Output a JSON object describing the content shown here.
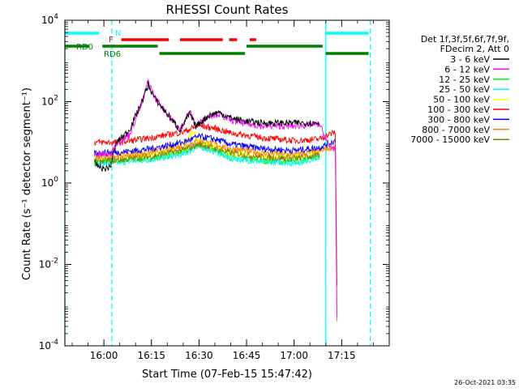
{
  "chart_data": {
    "type": "line",
    "title": "RHESSI Count Rates",
    "xlabel": "Start Time (07-Feb-15 15:47:42)",
    "ylabel": "Count Rate (s⁻¹ detector segment⁻¹)",
    "y_scale": "log",
    "ylim": [
      0.0001,
      10000
    ],
    "xlim": [
      "15:47:42",
      "17:30:00"
    ],
    "x_ticks": [
      "16:00",
      "16:15",
      "16:30",
      "16:45",
      "17:00",
      "17:15"
    ],
    "y_ticks": [
      {
        "value": 0.0001,
        "base": "10",
        "exp": "-4"
      },
      {
        "value": 0.01,
        "base": "10",
        "exp": "-2"
      },
      {
        "value": 1,
        "base": "10",
        "exp": "0"
      },
      {
        "value": 100,
        "base": "10",
        "exp": "2"
      },
      {
        "value": 10000,
        "base": "10",
        "exp": "4"
      }
    ],
    "legend": {
      "placement": "right",
      "header": [
        "Det 1f,3f,5f,6f,7f,9f,",
        "FDecim 2, Att 0"
      ],
      "entries": [
        {
          "label": "3 - 6 keV",
          "color": "#000000"
        },
        {
          "label": "6 - 12 keV",
          "color": "#ff00ff"
        },
        {
          "label": "12 - 25 keV",
          "color": "#00ff00"
        },
        {
          "label": "25 - 50 keV",
          "color": "#00ffff"
        },
        {
          "label": "50 - 100 keV",
          "color": "#ffff00"
        },
        {
          "label": "100 - 300 keV",
          "color": "#ff0000"
        },
        {
          "label": "300 - 800 keV",
          "color": "#0000ff"
        },
        {
          "label": "800 - 7000 keV",
          "color": "#ff8000"
        },
        {
          "label": "7000 - 15000 keV",
          "color": "#808000"
        }
      ]
    },
    "flag_bars": [
      {
        "label": "N",
        "color": "#00ffff",
        "segments": [
          [
            "15:47:42",
            "15:58:30"
          ],
          [
            "17:10:00",
            "17:23:30"
          ]
        ]
      },
      {
        "label": "F",
        "color": "#ff0000",
        "segments": [
          [
            "16:05:30",
            "16:20:30"
          ],
          [
            "16:24:00",
            "16:37:30"
          ],
          [
            "16:39:30",
            "16:42:00"
          ],
          [
            "16:46:00",
            "16:48:00"
          ]
        ]
      },
      {
        "label": "RD0",
        "color": "#008000",
        "segments": [
          [
            "15:47:42",
            "15:55:30"
          ],
          [
            "15:59:30",
            "16:17:00"
          ],
          [
            "16:45:00",
            "17:09:00"
          ]
        ]
      },
      {
        "label": "RD6",
        "color": "#008000",
        "segments": [
          [
            "16:17:30",
            "16:44:30"
          ],
          [
            "17:10:00",
            "17:23:30"
          ]
        ]
      }
    ],
    "vertical_markers": [
      {
        "time": "15:47:42",
        "color": "#00ffff",
        "style": "solid"
      },
      {
        "time": "16:02:30",
        "color": "#00ffff",
        "style": "dashed"
      },
      {
        "time": "17:10:00",
        "color": "#00ffff",
        "style": "solid"
      },
      {
        "time": "17:24:00",
        "color": "#00ffff",
        "style": "dashed"
      }
    ],
    "series": [
      {
        "name": "3 - 6 keV",
        "color": "#000000",
        "points": [
          [
            "15:57:00",
            3.0
          ],
          [
            "16:00:00",
            2.2
          ],
          [
            "16:02:00",
            2.5
          ],
          [
            "16:04:00",
            10
          ],
          [
            "16:08:00",
            20
          ],
          [
            "16:12:00",
            100
          ],
          [
            "16:14:00",
            260
          ],
          [
            "16:16:00",
            120
          ],
          [
            "16:20:00",
            50
          ],
          [
            "16:24:00",
            20
          ],
          [
            "16:27:00",
            50
          ],
          [
            "16:29:00",
            25
          ],
          [
            "16:33:00",
            45
          ],
          [
            "16:36:00",
            55
          ],
          [
            "16:40:00",
            40
          ],
          [
            "16:45:00",
            33
          ],
          [
            "16:50:00",
            30
          ],
          [
            "17:00:00",
            30
          ],
          [
            "17:08:00",
            30
          ]
        ]
      },
      {
        "name": "6 - 12 keV",
        "color": "#ff00ff",
        "points": [
          [
            "15:57:00",
            5
          ],
          [
            "16:02:00",
            5
          ],
          [
            "16:04:00",
            10
          ],
          [
            "16:08:00",
            15
          ],
          [
            "16:12:00",
            90
          ],
          [
            "16:14:00",
            330
          ],
          [
            "16:16:00",
            130
          ],
          [
            "16:20:00",
            50
          ],
          [
            "16:24:00",
            20
          ],
          [
            "16:27:00",
            60
          ],
          [
            "16:29:00",
            25
          ],
          [
            "16:33:00",
            45
          ],
          [
            "16:36:00",
            50
          ],
          [
            "16:40:00",
            35
          ],
          [
            "16:45:00",
            28
          ],
          [
            "16:50:00",
            25
          ],
          [
            "17:00:00",
            25
          ],
          [
            "17:08:00",
            28
          ],
          [
            "17:11:00",
            8
          ],
          [
            "17:13:00",
            7
          ],
          [
            "17:13:30",
            0.0005
          ]
        ]
      },
      {
        "name": "12 - 25 keV",
        "color": "#00ff00",
        "points": [
          [
            "15:57:00",
            3.2
          ],
          [
            "16:05:00",
            3.5
          ],
          [
            "16:15:00",
            4.0
          ],
          [
            "16:25:00",
            5.5
          ],
          [
            "16:30:00",
            8.5
          ],
          [
            "16:35:00",
            6.5
          ],
          [
            "16:40:00",
            4.2
          ],
          [
            "16:50:00",
            3.5
          ],
          [
            "17:00:00",
            3.3
          ],
          [
            "17:08:00",
            4.5
          ]
        ]
      },
      {
        "name": "25 - 50 keV",
        "color": "#00ffff",
        "points": [
          [
            "15:57:00",
            3.0
          ],
          [
            "16:05:00",
            3.2
          ],
          [
            "16:15:00",
            3.8
          ],
          [
            "16:25:00",
            5.0
          ],
          [
            "16:30:00",
            8.0
          ],
          [
            "16:35:00",
            6.0
          ],
          [
            "16:40:00",
            4.0
          ],
          [
            "16:50:00",
            3.3
          ],
          [
            "17:00:00",
            3.1
          ],
          [
            "17:08:00",
            4.2
          ]
        ]
      },
      {
        "name": "50 - 100 keV",
        "color": "#ffff00",
        "points": [
          [
            "15:57:00",
            4.0
          ],
          [
            "16:05:00",
            4.3
          ],
          [
            "16:15:00",
            5.0
          ],
          [
            "16:25:00",
            7.0
          ],
          [
            "16:28:00",
            20
          ],
          [
            "16:30:00",
            10
          ],
          [
            "16:35:00",
            8.0
          ],
          [
            "16:40:00",
            5.5
          ],
          [
            "16:50:00",
            4.5
          ],
          [
            "17:00:00",
            4.3
          ],
          [
            "17:08:00",
            6.0
          ]
        ]
      },
      {
        "name": "100 - 300 keV",
        "color": "#ff0000",
        "points": [
          [
            "15:57:00",
            10
          ],
          [
            "16:05:00",
            10
          ],
          [
            "16:15:00",
            13
          ],
          [
            "16:25:00",
            18
          ],
          [
            "16:30:00",
            26
          ],
          [
            "16:35:00",
            22
          ],
          [
            "16:40:00",
            17
          ],
          [
            "16:50:00",
            13
          ],
          [
            "17:00:00",
            11
          ],
          [
            "17:08:00",
            12
          ],
          [
            "17:10:30",
            15
          ],
          [
            "17:13:00",
            18
          ],
          [
            "17:13:30",
            0.003
          ]
        ]
      },
      {
        "name": "300 - 800 keV",
        "color": "#0000ff",
        "points": [
          [
            "15:57:00",
            5.5
          ],
          [
            "16:05:00",
            5.7
          ],
          [
            "16:15:00",
            7.0
          ],
          [
            "16:25:00",
            10
          ],
          [
            "16:30:00",
            14
          ],
          [
            "16:35:00",
            12
          ],
          [
            "16:40:00",
            9.0
          ],
          [
            "16:50:00",
            7.0
          ],
          [
            "17:00:00",
            6.3
          ],
          [
            "17:08:00",
            7.5
          ],
          [
            "17:10:30",
            9.0
          ],
          [
            "17:13:00",
            11
          ]
        ]
      },
      {
        "name": "800 - 7000 keV",
        "color": "#ff8000",
        "points": [
          [
            "15:57:00",
            4.5
          ],
          [
            "16:05:00",
            4.7
          ],
          [
            "16:15:00",
            5.7
          ],
          [
            "16:25:00",
            8.0
          ],
          [
            "16:30:00",
            11
          ],
          [
            "16:35:00",
            9.0
          ],
          [
            "16:40:00",
            7.0
          ],
          [
            "16:50:00",
            5.5
          ],
          [
            "17:00:00",
            5.0
          ],
          [
            "17:08:00",
            6.0
          ],
          [
            "17:10:30",
            7.0
          ],
          [
            "17:13:00",
            8.0
          ],
          [
            "17:13:30",
            0.0004
          ]
        ]
      },
      {
        "name": "7000 - 15000 keV",
        "color": "#808000",
        "points": [
          [
            "15:57:00",
            3.5
          ],
          [
            "16:05:00",
            3.7
          ],
          [
            "16:15:00",
            4.5
          ],
          [
            "16:25:00",
            6.5
          ],
          [
            "16:30:00",
            9.0
          ],
          [
            "16:35:00",
            7.0
          ],
          [
            "16:40:00",
            5.5
          ],
          [
            "16:50:00",
            4.3
          ],
          [
            "17:00:00",
            4.0
          ],
          [
            "17:08:00",
            4.8
          ]
        ]
      }
    ]
  },
  "footer": {
    "timestamp": "26-Oct-2021 03:35"
  }
}
